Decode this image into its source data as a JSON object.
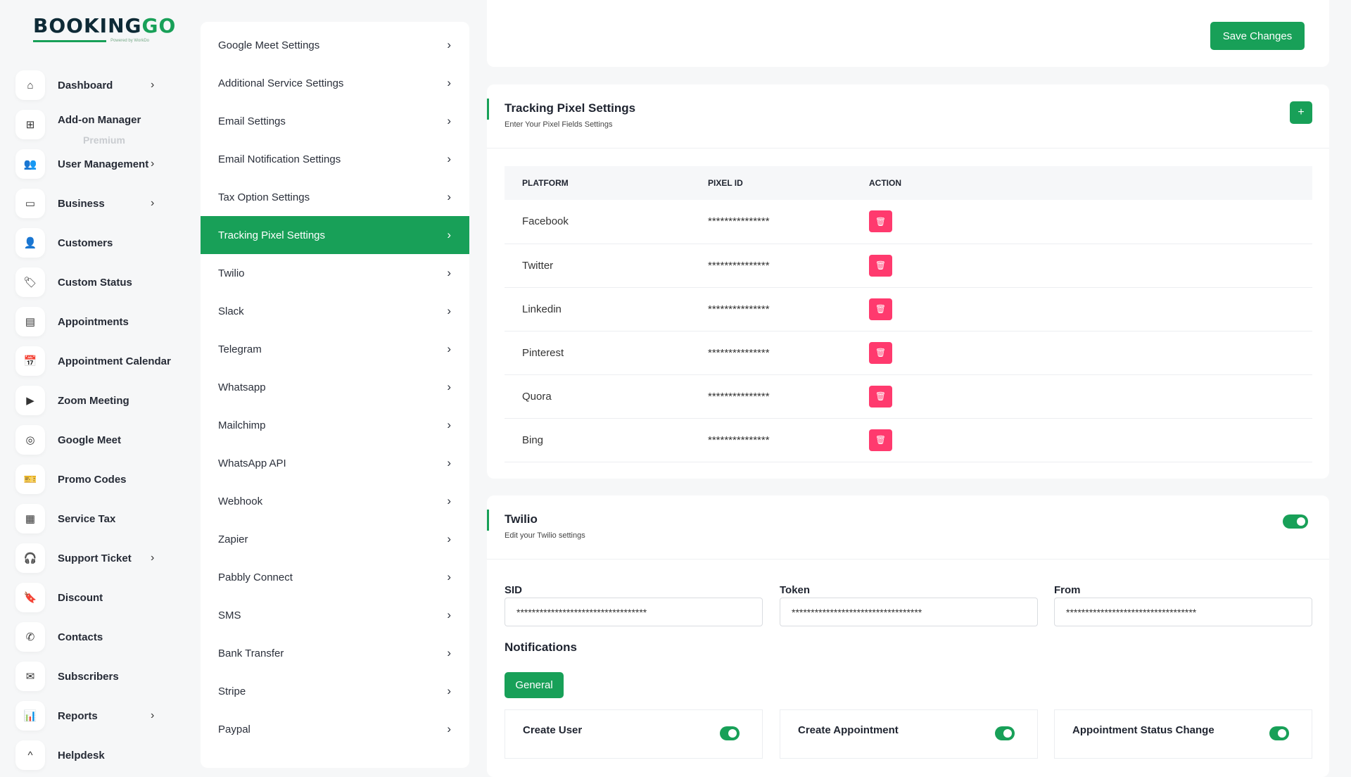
{
  "brand": {
    "name_a": "BOOKING",
    "name_b": "GO",
    "powered": "Powered by WorkDo"
  },
  "sidebar": {
    "items": [
      {
        "label": "Dashboard",
        "icon": "home-icon",
        "glyph": "⌂",
        "chevron": true
      },
      {
        "label": "Add-on Manager",
        "icon": "grid-icon",
        "glyph": "⊞",
        "chevron": false,
        "sub": "Premium"
      },
      {
        "label": "User Management",
        "icon": "users-icon",
        "glyph": "👥",
        "chevron": true
      },
      {
        "label": "Business",
        "icon": "briefcase-icon",
        "glyph": "▭",
        "chevron": true
      },
      {
        "label": "Customers",
        "icon": "user-icon",
        "glyph": "👤",
        "chevron": false
      },
      {
        "label": "Custom Status",
        "icon": "tag-icon",
        "glyph": "🏷",
        "chevron": false
      },
      {
        "label": "Appointments",
        "icon": "list-icon",
        "glyph": "▤",
        "chevron": false
      },
      {
        "label": "Appointment Calendar",
        "icon": "calendar-icon",
        "glyph": "📅",
        "chevron": false
      },
      {
        "label": "Zoom Meeting",
        "icon": "video-icon",
        "glyph": "▶",
        "chevron": false
      },
      {
        "label": "Google Meet",
        "icon": "meet-icon",
        "glyph": "◎",
        "chevron": false
      },
      {
        "label": "Promo Codes",
        "icon": "ticket-icon",
        "glyph": "🎫",
        "chevron": false
      },
      {
        "label": "Service Tax",
        "icon": "receipt-icon",
        "glyph": "▦",
        "chevron": false
      },
      {
        "label": "Support Ticket",
        "icon": "headset-icon",
        "glyph": "🎧",
        "chevron": true
      },
      {
        "label": "Discount",
        "icon": "bookmark-icon",
        "glyph": "🔖",
        "chevron": false
      },
      {
        "label": "Contacts",
        "icon": "phone-icon",
        "glyph": "✆",
        "chevron": false
      },
      {
        "label": "Subscribers",
        "icon": "mail-icon",
        "glyph": "✉",
        "chevron": false
      },
      {
        "label": "Reports",
        "icon": "chart-icon",
        "glyph": "📊",
        "chevron": true
      },
      {
        "label": "Helpdesk",
        "icon": "helpdesk-icon",
        "glyph": "^",
        "chevron": false
      }
    ]
  },
  "menu": {
    "active": "Tracking Pixel Settings",
    "items": [
      "Google Meet Settings",
      "Additional Service Settings",
      "Email Settings",
      "Email Notification Settings",
      "Tax Option Settings",
      "Tracking Pixel Settings",
      "Twilio",
      "Slack",
      "Telegram",
      "Whatsapp",
      "Mailchimp",
      "WhatsApp API",
      "Webhook",
      "Zapier",
      "Pabbly Connect",
      "SMS",
      "Bank Transfer",
      "Stripe",
      "Paypal"
    ]
  },
  "top": {
    "save_label": "Save Changes"
  },
  "tracking": {
    "title": "Tracking Pixel Settings",
    "subtitle": "Enter Your Pixel Fields Settings",
    "add_label": "+",
    "columns": [
      "PLATFORM",
      "PIXEL ID",
      "ACTION"
    ],
    "rows": [
      {
        "platform": "Facebook",
        "pixel_id": "***************"
      },
      {
        "platform": "Twitter",
        "pixel_id": "***************"
      },
      {
        "platform": "Linkedin",
        "pixel_id": "***************"
      },
      {
        "platform": "Pinterest",
        "pixel_id": "***************"
      },
      {
        "platform": "Quora",
        "pixel_id": "***************"
      },
      {
        "platform": "Bing",
        "pixel_id": "***************"
      }
    ]
  },
  "twilio": {
    "title": "Twilio",
    "subtitle": "Edit your Twilio settings",
    "enabled": true,
    "fields": [
      {
        "label": "SID",
        "value": "**********************************"
      },
      {
        "label": "Token",
        "value": "**********************************"
      },
      {
        "label": "From",
        "value": "**********************************"
      }
    ],
    "notifications_title": "Notifications",
    "tab": "General",
    "notifications": [
      {
        "label": "Create User",
        "enabled": true
      },
      {
        "label": "Create Appointment",
        "enabled": true
      },
      {
        "label": "Appointment Status Change",
        "enabled": true
      }
    ]
  },
  "colors": {
    "accent": "#18a058",
    "danger": "#ff3a6e",
    "background": "#f6f7f8"
  }
}
